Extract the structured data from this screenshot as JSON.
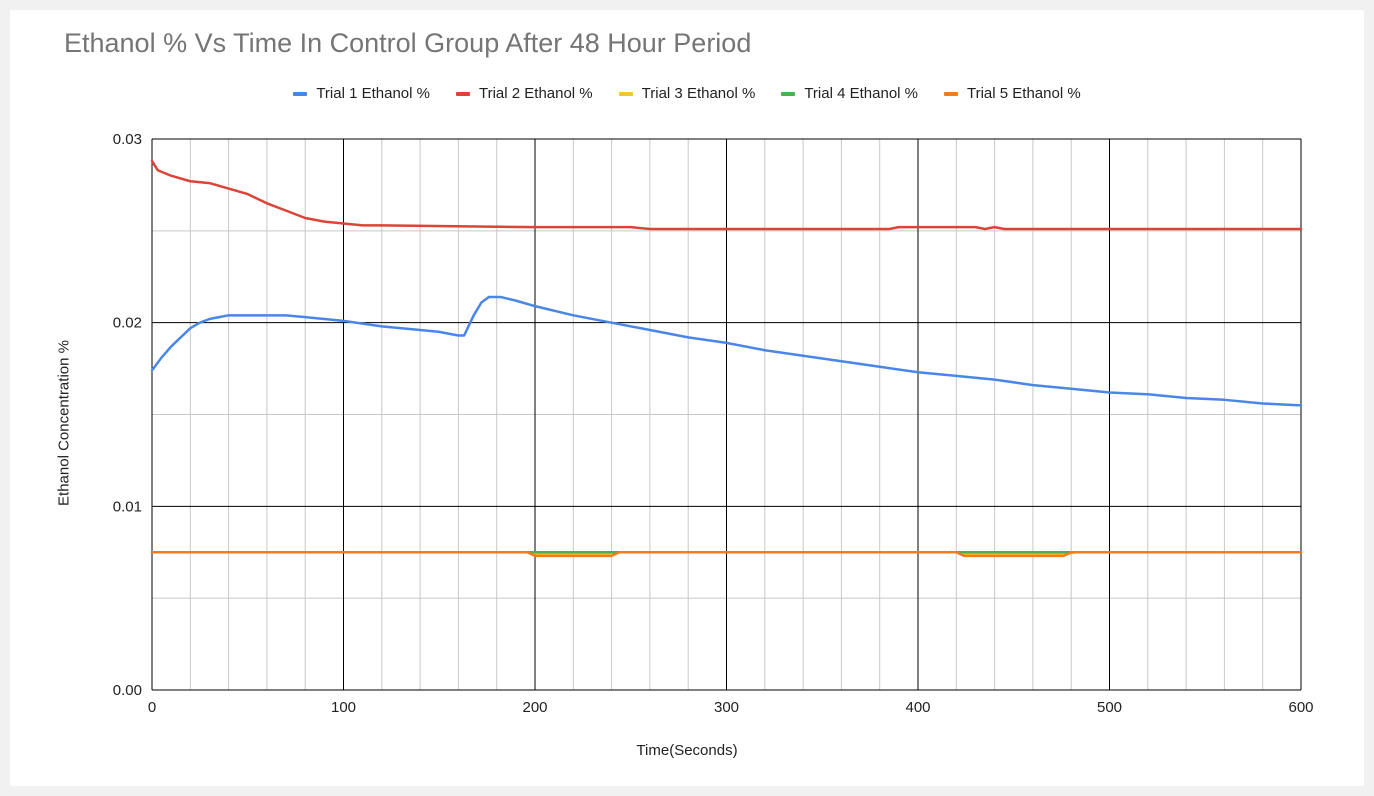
{
  "chart_data": {
    "type": "line",
    "title": "Ethanol % Vs Time In Control Group After 48 Hour Period",
    "xlabel": "Time(Seconds)",
    "ylabel": "Ethanol Concentration %",
    "xlim": [
      0,
      600
    ],
    "ylim": [
      0,
      0.03
    ],
    "x_ticks": [
      0,
      100,
      200,
      300,
      400,
      500,
      600
    ],
    "x_tick_labels": [
      "0",
      "100",
      "200",
      "300",
      "400",
      "500",
      "600"
    ],
    "y_ticks": [
      0,
      0.01,
      0.02,
      0.03
    ],
    "y_tick_labels": [
      "0.00",
      "0.01",
      "0.02",
      "0.03"
    ],
    "grid": true,
    "legend_position": "top",
    "series": [
      {
        "name": "Trial 1 Ethanol %",
        "color": "#4a86e8",
        "points": [
          [
            0,
            0.0174
          ],
          [
            5,
            0.0181
          ],
          [
            10,
            0.0187
          ],
          [
            15,
            0.0192
          ],
          [
            20,
            0.0197
          ],
          [
            25,
            0.02
          ],
          [
            30,
            0.0202
          ],
          [
            35,
            0.0203
          ],
          [
            40,
            0.0204
          ],
          [
            60,
            0.0204
          ],
          [
            70,
            0.0204
          ],
          [
            80,
            0.0203
          ],
          [
            100,
            0.0201
          ],
          [
            120,
            0.0198
          ],
          [
            140,
            0.0196
          ],
          [
            150,
            0.0195
          ],
          [
            160,
            0.0193
          ],
          [
            163,
            0.0193
          ],
          [
            168,
            0.0204
          ],
          [
            172,
            0.0211
          ],
          [
            176,
            0.0214
          ],
          [
            182,
            0.0214
          ],
          [
            190,
            0.0212
          ],
          [
            200,
            0.0209
          ],
          [
            220,
            0.0204
          ],
          [
            240,
            0.02
          ],
          [
            260,
            0.0196
          ],
          [
            280,
            0.0192
          ],
          [
            300,
            0.0189
          ],
          [
            320,
            0.0185
          ],
          [
            340,
            0.0182
          ],
          [
            360,
            0.0179
          ],
          [
            380,
            0.0176
          ],
          [
            400,
            0.0173
          ],
          [
            420,
            0.0171
          ],
          [
            440,
            0.0169
          ],
          [
            460,
            0.0166
          ],
          [
            480,
            0.0164
          ],
          [
            500,
            0.0162
          ],
          [
            520,
            0.0161
          ],
          [
            540,
            0.0159
          ],
          [
            560,
            0.0158
          ],
          [
            580,
            0.0156
          ],
          [
            600,
            0.0155
          ]
        ]
      },
      {
        "name": "Trial 2 Ethanol %",
        "color": "#db4437",
        "points": [
          [
            0,
            0.0288
          ],
          [
            3,
            0.0283
          ],
          [
            10,
            0.028
          ],
          [
            20,
            0.0277
          ],
          [
            30,
            0.0276
          ],
          [
            40,
            0.0273
          ],
          [
            50,
            0.027
          ],
          [
            60,
            0.0265
          ],
          [
            70,
            0.0261
          ],
          [
            80,
            0.0257
          ],
          [
            90,
            0.0255
          ],
          [
            100,
            0.0254
          ],
          [
            110,
            0.0253
          ],
          [
            120,
            0.0253
          ],
          [
            200,
            0.0252
          ],
          [
            250,
            0.0252
          ],
          [
            260,
            0.0251
          ],
          [
            385,
            0.0251
          ],
          [
            390,
            0.0252
          ],
          [
            430,
            0.0252
          ],
          [
            435,
            0.0251
          ],
          [
            440,
            0.0252
          ],
          [
            445,
            0.0251
          ],
          [
            600,
            0.0251
          ]
        ]
      },
      {
        "name": "Trial 3 Ethanol %",
        "color": "#f4c531",
        "points": [
          [
            0,
            0.0075
          ],
          [
            198,
            0.0075
          ],
          [
            202,
            0.0074
          ],
          [
            240,
            0.0074
          ],
          [
            244,
            0.0075
          ],
          [
            420,
            0.0075
          ],
          [
            424,
            0.0074
          ],
          [
            478,
            0.0074
          ],
          [
            482,
            0.0075
          ],
          [
            600,
            0.0075
          ]
        ]
      },
      {
        "name": "Trial 4 Ethanol %",
        "color": "#4caf50",
        "points": [
          [
            0,
            0.0075
          ],
          [
            600,
            0.0075
          ]
        ]
      },
      {
        "name": "Trial 5 Ethanol %",
        "color": "#f07d20",
        "points": [
          [
            0,
            0.0075
          ],
          [
            196,
            0.0075
          ],
          [
            200,
            0.0073
          ],
          [
            240,
            0.0073
          ],
          [
            244,
            0.0075
          ],
          [
            420,
            0.0075
          ],
          [
            424,
            0.0073
          ],
          [
            476,
            0.0073
          ],
          [
            480,
            0.0075
          ],
          [
            600,
            0.0075
          ]
        ]
      }
    ]
  }
}
